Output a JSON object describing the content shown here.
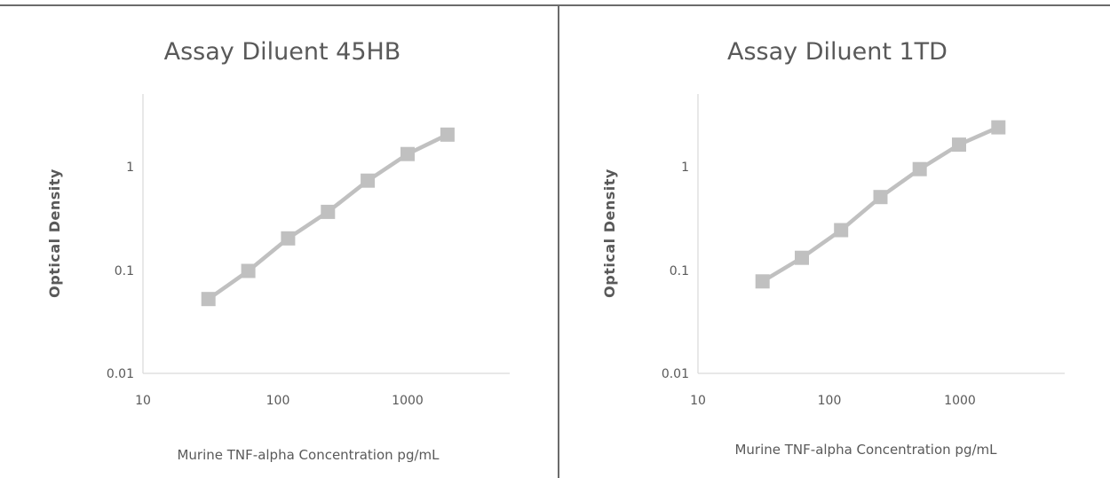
{
  "chart_data": [
    {
      "type": "line",
      "title": "Assay Diluent 45HB",
      "xlabel": "Murine TNF-alpha Concentration pg/mL",
      "ylabel": "Optical Density",
      "x_scale": "log",
      "y_scale": "log",
      "xlim": [
        10,
        5000
      ],
      "ylim": [
        0.01,
        5
      ],
      "x_ticks": [
        "10",
        "100",
        "1000"
      ],
      "y_ticks": [
        "0.01",
        "0.1",
        "1"
      ],
      "series": [
        {
          "x": [
            31.25,
            62.5,
            125,
            250,
            500,
            1000,
            2000
          ],
          "y": [
            0.052,
            0.097,
            0.2,
            0.36,
            0.72,
            1.3,
            2.0
          ]
        }
      ],
      "grid": false,
      "series_color": "#c0c0c0"
    },
    {
      "type": "line",
      "title": "Assay Diluent 1TD",
      "xlabel": "Murine TNF-alpha Concentration pg/mL",
      "ylabel": "Optical Density",
      "x_scale": "log",
      "y_scale": "log",
      "xlim": [
        10,
        5000
      ],
      "ylim": [
        0.01,
        5
      ],
      "x_ticks": [
        "10",
        "100",
        "1000"
      ],
      "y_ticks": [
        "0.01",
        "0.1",
        "1"
      ],
      "series": [
        {
          "x": [
            31.25,
            62.5,
            125,
            250,
            500,
            1000,
            2000
          ],
          "y": [
            0.077,
            0.13,
            0.24,
            0.5,
            0.93,
            1.6,
            2.35
          ]
        }
      ],
      "grid": false,
      "series_color": "#c0c0c0"
    }
  ]
}
